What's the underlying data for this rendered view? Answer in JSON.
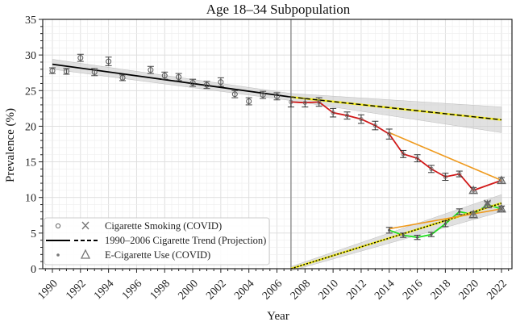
{
  "chart_data": {
    "type": "line",
    "title": "Age 18–34 Subpopulation",
    "xlabel": "Year",
    "ylabel": "Prevalence (%)",
    "xlim": [
      1989.3,
      2022.7
    ],
    "ylim": [
      0,
      35
    ],
    "xticks": [
      1990,
      1992,
      1994,
      1996,
      1998,
      2000,
      2002,
      2004,
      2006,
      2008,
      2010,
      2012,
      2014,
      2016,
      2018,
      2020,
      2022
    ],
    "xtick_labels": [
      "1990",
      "1992",
      "1994",
      "1996",
      "1998",
      "2000",
      "2002",
      "2004",
      "2006",
      "2008",
      "2010",
      "2012",
      "2014",
      "2016",
      "2018",
      "2020",
      "2022"
    ],
    "yticks": [
      0,
      5,
      10,
      15,
      20,
      25,
      30,
      35
    ],
    "ytick_labels": [
      "0",
      "5",
      "10",
      "15",
      "20",
      "25",
      "30",
      "35"
    ],
    "grid": true,
    "vertical_marker_year": 2007,
    "legend": {
      "placement": "bottom-left",
      "entries": [
        {
          "label": "Cigarette Smoking (COVID)",
          "markers": [
            "circle",
            "x"
          ]
        },
        {
          "label": "1990–2006 Cigarette Trend (Projection)",
          "markers": [
            "solid-line",
            "dashed-line"
          ]
        },
        {
          "label": "E-Cigarette Use (COVID)",
          "markers": [
            "dot",
            "triangle"
          ]
        }
      ]
    },
    "series": [
      {
        "name": "Cigarette Smoking 1990–2006",
        "style": "grey-circles-errorbars",
        "x": [
          1990,
          1991,
          1992,
          1993,
          1994,
          1995,
          1997,
          1998,
          1999,
          2000,
          2001,
          2002,
          2003,
          2004,
          2005,
          2006
        ],
        "y": [
          27.8,
          27.7,
          29.6,
          27.6,
          29.1,
          26.8,
          27.9,
          27.1,
          26.9,
          26.1,
          25.8,
          26.2,
          24.5,
          23.5,
          24.4,
          24.2
        ],
        "err": [
          0.4,
          0.4,
          0.5,
          0.5,
          0.6,
          0.4,
          0.5,
          0.5,
          0.5,
          0.5,
          0.5,
          0.6,
          0.5,
          0.5,
          0.5,
          0.5
        ]
      },
      {
        "name": "1990–2006 Cigarette Trend (fit)",
        "style": "black-solid",
        "x": [
          1990,
          2007
        ],
        "y": [
          28.7,
          24.1
        ],
        "band": [
          0.7,
          0.5
        ]
      },
      {
        "name": "1990–2006 Cigarette Trend (Projection)",
        "style": "black-dashed-yellow",
        "x": [
          2007,
          2022
        ],
        "y": [
          24.1,
          20.9
        ],
        "band": [
          0.5,
          1.8
        ]
      },
      {
        "name": "Cigarette Smoking 2007–2022",
        "style": "red-line-errorbars",
        "x": [
          2007,
          2008,
          2009,
          2010,
          2011,
          2012,
          2013,
          2014,
          2015,
          2016,
          2017,
          2018,
          2019,
          2020,
          2022
        ],
        "y": [
          23.4,
          23.3,
          23.4,
          21.9,
          21.5,
          21.0,
          20.1,
          18.9,
          16.1,
          15.5,
          14.0,
          12.9,
          13.3,
          11.0,
          12.4
        ],
        "err": [
          0.7,
          0.6,
          0.6,
          0.6,
          0.5,
          0.6,
          0.6,
          0.7,
          0.5,
          0.5,
          0.5,
          0.5,
          0.4,
          0.4,
          0.4
        ]
      },
      {
        "name": "Cigarette COVID projection",
        "style": "orange-line",
        "x": [
          2014,
          2022
        ],
        "y": [
          19.1,
          12.4
        ]
      },
      {
        "name": "E-Cigarette Use",
        "style": "green-line-errorbars",
        "x": [
          2014,
          2015,
          2016,
          2017,
          2018,
          2019,
          2020,
          2021,
          2022
        ],
        "y": [
          5.4,
          4.7,
          4.4,
          4.8,
          6.3,
          8.0,
          7.6,
          9.0,
          8.4
        ],
        "err": [
          0.4,
          0.3,
          0.3,
          0.3,
          0.4,
          0.4,
          0.4,
          0.4,
          0.4
        ]
      },
      {
        "name": "E-Cigarette Trend (Projection)",
        "style": "black-dotted-yellow",
        "x": [
          2007,
          2022
        ],
        "y": [
          0.0,
          9.2
        ],
        "band": [
          0.3,
          1.2
        ]
      },
      {
        "name": "E-Cigarette COVID projection",
        "style": "orange-line",
        "x": [
          2014,
          2022
        ],
        "y": [
          5.6,
          8.4
        ]
      },
      {
        "name": "COVID markers (triangles)",
        "style": "grey-triangles",
        "x": [
          2020,
          2022,
          2020,
          2021,
          2022
        ],
        "y": [
          11.0,
          12.4,
          7.6,
          9.0,
          8.4
        ]
      },
      {
        "name": "COVID markers (x)",
        "style": "grey-x",
        "x": [
          2021,
          2022
        ],
        "y": [
          9.2,
          8.4
        ]
      }
    ]
  }
}
